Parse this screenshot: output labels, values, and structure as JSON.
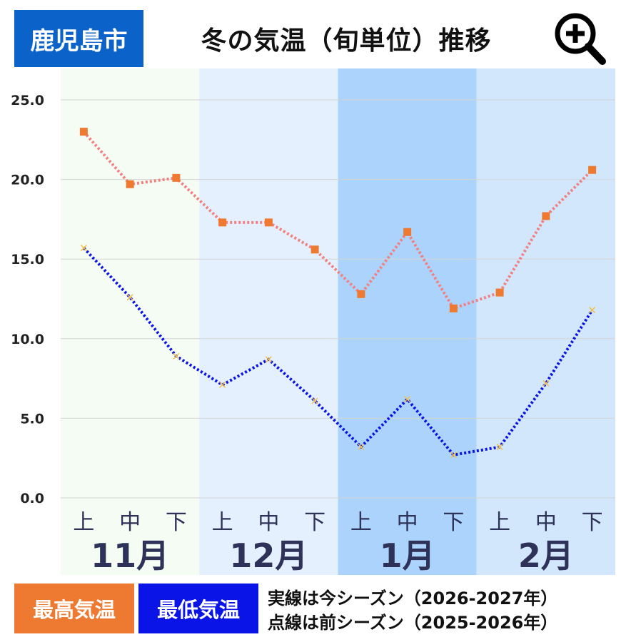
{
  "header": {
    "city": "鹿児島市",
    "title": "冬の気温（旬単位）推移",
    "zoom_icon": "zoom-in-icon"
  },
  "legend": {
    "max_label": "最高気温",
    "min_label": "最低気温",
    "note_current": "実線は今シーズン（2026-2027年）",
    "note_previous": "点線は前シーズン（2025-2026年）"
  },
  "colors": {
    "city_bg": "#0b62c9",
    "max_series": "#ee7a32",
    "max_line": "#f28080",
    "min_series": "#0a14e6",
    "band_nov": "#f5fcf3",
    "band_dec": "#e4f0fe",
    "band_jan": "#acd3fc",
    "band_feb": "#d2e6fc"
  },
  "chart_data": {
    "type": "line",
    "months": [
      "11月",
      "12月",
      "1月",
      "2月"
    ],
    "categories": [
      "上",
      "中",
      "下",
      "上",
      "中",
      "下",
      "上",
      "中",
      "下",
      "上",
      "中",
      "下"
    ],
    "yticks": [
      "0.0",
      "5.0",
      "10.0",
      "15.0",
      "20.0",
      "25.0"
    ],
    "ylim": [
      0,
      25
    ],
    "grid": true,
    "series": [
      {
        "name": "最高気温",
        "line_style": "dotted",
        "marker": "square",
        "values": [
          23.0,
          19.7,
          20.1,
          17.3,
          17.3,
          15.6,
          12.8,
          16.7,
          11.9,
          12.9,
          17.7,
          20.6
        ]
      },
      {
        "name": "最低気温",
        "line_style": "dotted",
        "marker": "x",
        "values": [
          15.7,
          12.6,
          8.9,
          7.1,
          8.7,
          6.1,
          3.2,
          6.2,
          2.7,
          3.2,
          7.2,
          11.8
        ]
      }
    ]
  }
}
